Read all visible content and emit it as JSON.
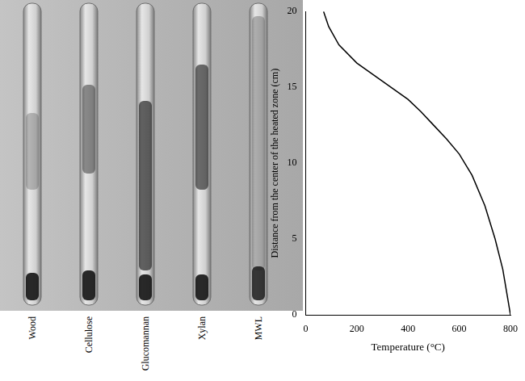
{
  "photo": {
    "labels": [
      "Wood",
      "Cellulose",
      "Glucomannan",
      "Xylan",
      "MWL"
    ]
  },
  "chart_data": {
    "type": "line",
    "x_label": "Temperature (°C)",
    "y_label": "Distance from the center of the heated zone (cm)",
    "x": [
      70,
      90,
      130,
      200,
      300,
      400,
      450,
      500,
      550,
      600,
      650,
      700,
      740,
      770,
      790,
      800
    ],
    "values": [
      20,
      19,
      17.8,
      16.6,
      15.4,
      14.2,
      13.4,
      12.5,
      11.6,
      10.6,
      9.2,
      7.2,
      5,
      3,
      1,
      0
    ],
    "color": "#000000",
    "xlim": [
      0,
      800
    ],
    "xticks": [
      0,
      200,
      400,
      600,
      800
    ],
    "ylim": [
      0,
      20
    ],
    "yticks": [
      0,
      5,
      10,
      15,
      20
    ],
    "grid": false
  }
}
